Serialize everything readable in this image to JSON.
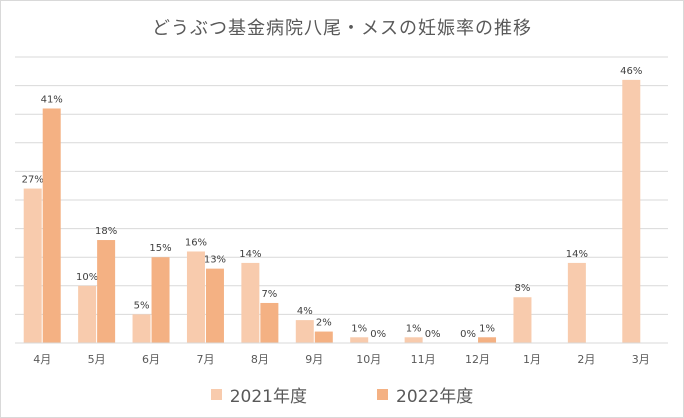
{
  "chart_data": {
    "type": "bar",
    "title": "どうぶつ基金病院八尾・メスの妊娠率の推移",
    "categories": [
      "4月",
      "5月",
      "6月",
      "7月",
      "8月",
      "9月",
      "10月",
      "11月",
      "12月",
      "1月",
      "2月",
      "3月"
    ],
    "series": [
      {
        "name": "2021年度",
        "color": "#f8cbad",
        "values": [
          27,
          10,
          5,
          16,
          14,
          4,
          1,
          1,
          0,
          8,
          14,
          46
        ],
        "labels": [
          "27%",
          "10%",
          "5%",
          "16%",
          "14%",
          "4%",
          "1%",
          "1%",
          "0%",
          "8%",
          "14%",
          "46%"
        ]
      },
      {
        "name": "2022年度",
        "color": "#f4b183",
        "values": [
          41,
          18,
          15,
          13,
          7,
          2,
          0,
          0,
          1,
          null,
          null,
          null
        ],
        "labels": [
          "41%",
          "18%",
          "15%",
          "13%",
          "7%",
          "2%",
          "0%",
          "0%",
          "1%",
          null,
          null,
          null
        ]
      }
    ],
    "ylim": [
      0,
      50
    ],
    "grid": true,
    "legend_position": "bottom"
  }
}
